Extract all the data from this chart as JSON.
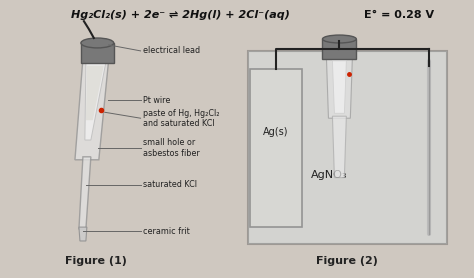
{
  "bg_color": "#cfc8c0",
  "equation": "Hg₂Cl₂(s) + 2e⁻ ⇌ 2Hg(l) + 2Cl⁻(aq)",
  "eo_text": "E° = 0.28 V",
  "fig1_label": "Figure (1)",
  "fig2_label": "Figure (2)",
  "fig2_inner_label": "Ag(s)",
  "fig2_solution_label": "AgNO₃",
  "label_electrical_lead": "electrical lead",
  "label_pt_wire": "Pt wire",
  "label_paste": "paste of Hg, Hg₂Cl₂\nand saturated KCl",
  "label_small_hole": "small hole or\nasbestos fiber",
  "label_sat_kcl": "saturated KCl",
  "label_ceramic": "ceramic frit",
  "electrode_color": "#b8b8b8",
  "cap_color": "#787878",
  "inner_color": "#e0e0e0",
  "wire_color": "#222222",
  "red_dot_color": "#cc2200",
  "beaker_edge": "#444444",
  "ag_rect_color": "#d0d0d0",
  "solution_color": "#dce4ec"
}
